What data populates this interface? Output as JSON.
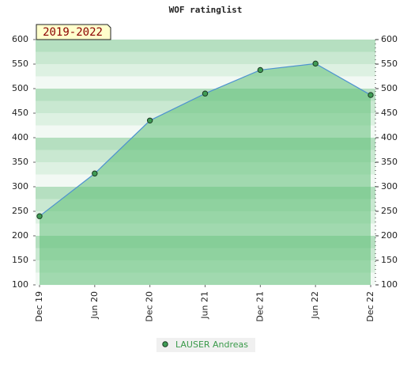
{
  "chart_data": {
    "type": "area",
    "title": "WOF ratinglist",
    "annotation": "2019-2022",
    "categories": [
      "Dec 19",
      "Jun 20",
      "Dec 20",
      "Jun 21",
      "Dec 21",
      "Jun 22",
      "Dec 22"
    ],
    "series": [
      {
        "name": "LAUSER Andreas",
        "color": "#5fbf77",
        "values": [
          240,
          327,
          435,
          490,
          538,
          551,
          487
        ]
      }
    ],
    "ylim": [
      100,
      600
    ],
    "yticks": [
      100,
      150,
      200,
      250,
      300,
      350,
      400,
      450,
      500,
      550,
      600
    ],
    "y2lim": [
      100,
      600
    ],
    "y2ticks": [
      100,
      150,
      200,
      250,
      300,
      350,
      400,
      450,
      500,
      550,
      600
    ]
  }
}
